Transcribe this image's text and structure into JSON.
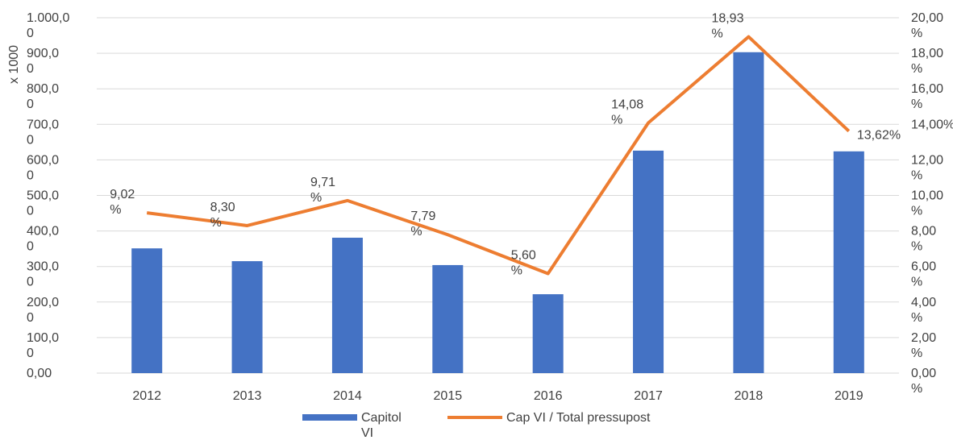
{
  "chart_data": {
    "type": "bar-line",
    "y_axis_label": "x 1000",
    "categories": [
      "2012",
      "2013",
      "2014",
      "2015",
      "2016",
      "2017",
      "2018",
      "2019"
    ],
    "series": [
      {
        "name": "Capitol VI",
        "type": "bar",
        "color": "#4472c4",
        "values": [
          351,
          315,
          381,
          304,
          222,
          626,
          903,
          624
        ]
      },
      {
        "name": "Cap VI / Total pressupost",
        "type": "line",
        "axis": "y2",
        "color": "#ed7d31",
        "values": [
          9.02,
          8.3,
          9.71,
          7.79,
          5.6,
          14.08,
          18.93,
          13.62
        ],
        "value_labels": [
          "9,02 %",
          "8,30 %",
          "9,71 %",
          "7,79 %",
          "5,60 %",
          "14,08 %",
          "18,93 %",
          "13,62%"
        ]
      }
    ],
    "ylim": [
      0,
      1000
    ],
    "yticks": [
      {
        "value": 0,
        "label": "0,00"
      },
      {
        "value": 100,
        "label": "100,00"
      },
      {
        "value": 200,
        "label": "200,00"
      },
      {
        "value": 300,
        "label": "300,00"
      },
      {
        "value": 400,
        "label": "400,00"
      },
      {
        "value": 500,
        "label": "500,00"
      },
      {
        "value": 600,
        "label": "600,00"
      },
      {
        "value": 700,
        "label": "700,00"
      },
      {
        "value": 800,
        "label": "800,00"
      },
      {
        "value": 900,
        "label": "900,00"
      },
      {
        "value": 1000,
        "label": "1.000,00"
      }
    ],
    "y2lim": [
      0,
      20
    ],
    "y2ticks": [
      {
        "value": 0,
        "label": "0,00 %"
      },
      {
        "value": 2,
        "label": "2,00 %"
      },
      {
        "value": 4,
        "label": "4,00 %"
      },
      {
        "value": 6,
        "label": "6,00 %"
      },
      {
        "value": 8,
        "label": "8,00 %"
      },
      {
        "value": 10,
        "label": "10,00 %"
      },
      {
        "value": 12,
        "label": "12,00 %"
      },
      {
        "value": 14,
        "label": "14,00%"
      },
      {
        "value": 16,
        "label": "16,00 %"
      },
      {
        "value": 18,
        "label": "18,00 %"
      },
      {
        "value": 20,
        "label": "20,00 %"
      }
    ],
    "grid": true,
    "legend": "bottom"
  }
}
